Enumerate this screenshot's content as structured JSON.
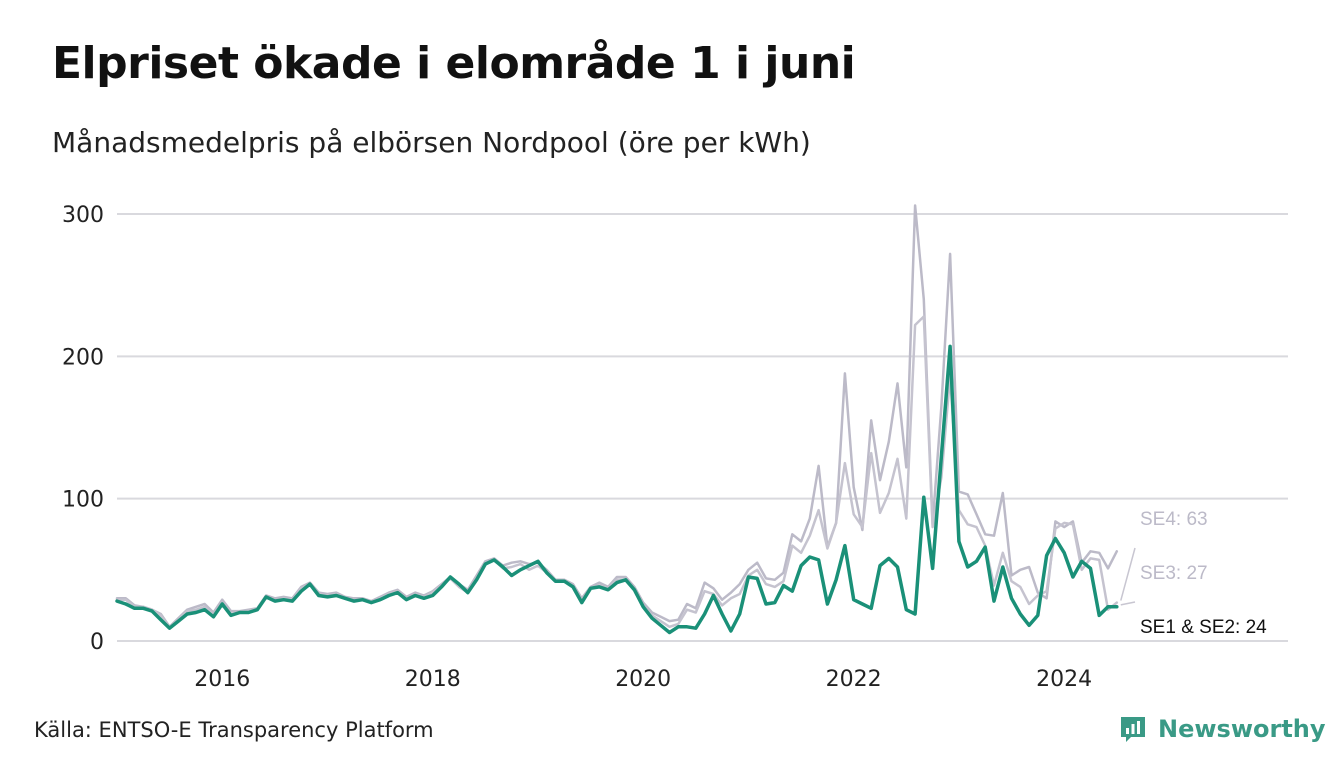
{
  "title": "Elpriset ökade i elområde 1 i juni",
  "subtitle": "Månadsmedelpris på elbörsen Nordpool (öre per kWh)",
  "source": "Källa: ENTSO-E Transparency Platform",
  "brand": {
    "name": "Newsworthy",
    "icon": "newsworthy-logo-icon",
    "color": "#3a9a86"
  },
  "chart_data": {
    "type": "line",
    "x_start": "2015-01",
    "x_tick_labels": [
      "2016",
      "2018",
      "2020",
      "2022",
      "2024"
    ],
    "y_ticks": [
      0,
      100,
      200,
      300
    ],
    "ylim": [
      0,
      310
    ],
    "grid": true,
    "series": [
      {
        "name": "SE4",
        "label": "SE4: 63",
        "color": "#bcbac8",
        "values": [
          30,
          30,
          25,
          24,
          22,
          19,
          10,
          16,
          22,
          24,
          26,
          20,
          29,
          21,
          21,
          22,
          23,
          32,
          30,
          31,
          30,
          38,
          41,
          34,
          33,
          34,
          31,
          30,
          30,
          28,
          31,
          34,
          36,
          31,
          34,
          32,
          35,
          40,
          45,
          40,
          36,
          46,
          56,
          58,
          53,
          55,
          56,
          54,
          55,
          50,
          43,
          43,
          40,
          30,
          38,
          41,
          38,
          45,
          45,
          38,
          27,
          20,
          17,
          14,
          15,
          26,
          23,
          41,
          37,
          29,
          34,
          40,
          50,
          55,
          44,
          43,
          48,
          75,
          70,
          86,
          123,
          66,
          83,
          188,
          108,
          78,
          155,
          113,
          140,
          181,
          122,
          306,
          240,
          82,
          165,
          272,
          105,
          103,
          89,
          75,
          74,
          104,
          46,
          50,
          52,
          34,
          30,
          84,
          80,
          84,
          55,
          63,
          62,
          51,
          63
        ]
      },
      {
        "name": "SE3",
        "label": "SE3: 27",
        "color": "#c5c3cf",
        "values": [
          29,
          29,
          24,
          24,
          22,
          18,
          9,
          15,
          21,
          22,
          24,
          18,
          27,
          19,
          20,
          21,
          22,
          31,
          28,
          30,
          29,
          37,
          40,
          33,
          32,
          33,
          30,
          29,
          29,
          27,
          30,
          33,
          35,
          29,
          33,
          31,
          34,
          39,
          44,
          38,
          34,
          44,
          55,
          57,
          51,
          52,
          54,
          50,
          53,
          48,
          42,
          42,
          38,
          28,
          37,
          39,
          37,
          43,
          43,
          36,
          24,
          18,
          14,
          10,
          12,
          22,
          20,
          35,
          33,
          25,
          30,
          33,
          46,
          50,
          40,
          38,
          42,
          67,
          62,
          74,
          92,
          65,
          83,
          125,
          89,
          80,
          132,
          90,
          104,
          128,
          86,
          222,
          228,
          80,
          115,
          186,
          92,
          82,
          80,
          67,
          39,
          62,
          42,
          38,
          26,
          32,
          35,
          79,
          83,
          82,
          50,
          58,
          57,
          22,
          27
        ]
      },
      {
        "name": "SE1 & SE2",
        "label": "SE1 & SE2: 24",
        "color": "#1a9078",
        "values": [
          28,
          26,
          23,
          23,
          21,
          15,
          9,
          14,
          19,
          20,
          22,
          17,
          26,
          18,
          20,
          20,
          22,
          31,
          28,
          29,
          28,
          35,
          40,
          32,
          31,
          32,
          30,
          28,
          29,
          27,
          29,
          32,
          34,
          29,
          32,
          30,
          32,
          38,
          45,
          40,
          34,
          43,
          54,
          57,
          52,
          46,
          50,
          53,
          56,
          48,
          42,
          42,
          38,
          27,
          37,
          38,
          36,
          41,
          43,
          36,
          24,
          16,
          11,
          6,
          10,
          10,
          9,
          19,
          32,
          19,
          7,
          19,
          45,
          44,
          26,
          27,
          39,
          35,
          53,
          59,
          57,
          26,
          43,
          67,
          29,
          26,
          23,
          53,
          58,
          52,
          22,
          19,
          101,
          51,
          130,
          207,
          70,
          52,
          56,
          66,
          28,
          52,
          30,
          19,
          11,
          18,
          60,
          72,
          62,
          45,
          56,
          51,
          18,
          24,
          24
        ]
      }
    ]
  }
}
